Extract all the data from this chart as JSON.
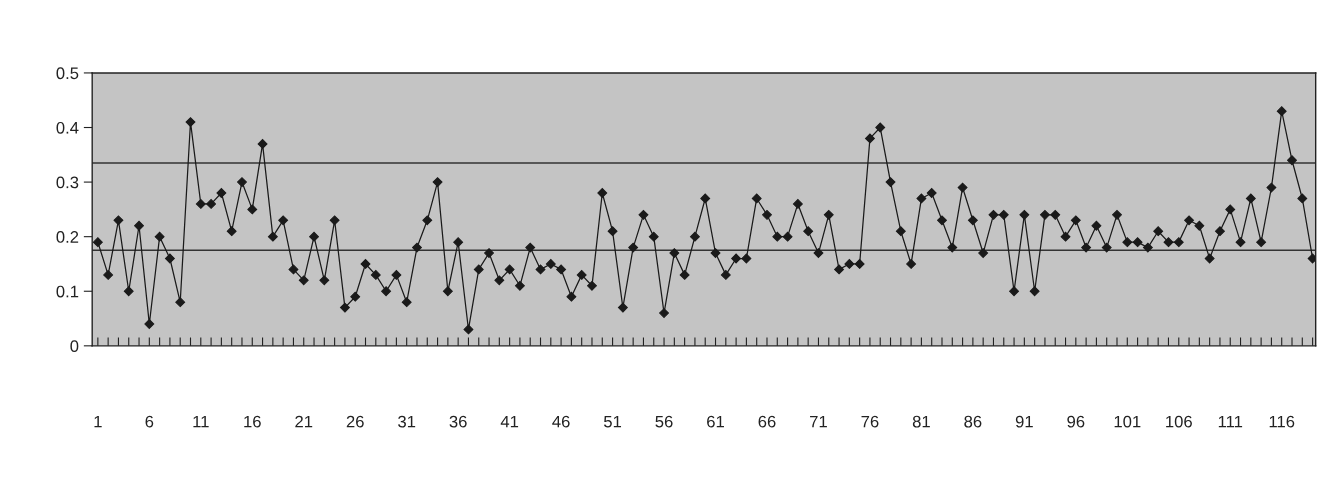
{
  "chart_data": {
    "type": "line",
    "categories": [
      "1",
      null,
      null,
      null,
      null,
      "6",
      null,
      null,
      null,
      null,
      "11",
      null,
      null,
      null,
      null,
      "16",
      null,
      null,
      null,
      null,
      "21",
      null,
      null,
      null,
      null,
      "26",
      null,
      null,
      null,
      null,
      "31",
      null,
      null,
      null,
      null,
      "36",
      null,
      null,
      null,
      null,
      "41",
      null,
      null,
      null,
      null,
      "46",
      null,
      null,
      null,
      null,
      "51",
      null,
      null,
      null,
      null,
      "56",
      null,
      null,
      null,
      null,
      "61",
      null,
      null,
      null,
      null,
      "66",
      null,
      null,
      null,
      null,
      "71",
      null,
      null,
      null,
      null,
      "76",
      null,
      null,
      null,
      null,
      "81",
      null,
      null,
      null,
      null,
      "86",
      null,
      null,
      null,
      null,
      "91",
      null,
      null,
      null,
      null,
      "96",
      null,
      null,
      null,
      null,
      "101",
      null,
      null,
      null,
      null,
      "106",
      null,
      null,
      null,
      null,
      "111",
      null,
      null,
      null,
      null,
      "116",
      null,
      null,
      null
    ],
    "series": [
      {
        "color": "#1a1a1a",
        "values": [
          0.19,
          0.13,
          0.23,
          0.1,
          0.22,
          0.04,
          0.2,
          0.16,
          0.08,
          0.41,
          0.26,
          0.26,
          0.28,
          0.21,
          0.3,
          0.25,
          0.37,
          0.2,
          0.23,
          0.14,
          0.12,
          0.2,
          0.12,
          0.23,
          0.07,
          0.09,
          0.15,
          0.13,
          0.1,
          0.13,
          0.08,
          0.18,
          0.23,
          0.3,
          0.1,
          0.19,
          0.03,
          0.14,
          0.17,
          0.12,
          0.14,
          0.11,
          0.18,
          0.14,
          0.15,
          0.14,
          0.09,
          0.13,
          0.11,
          0.28,
          0.21,
          0.07,
          0.18,
          0.24,
          0.2,
          0.06,
          0.17,
          0.13,
          0.2,
          0.27,
          0.17,
          0.13,
          0.16,
          0.16,
          0.27,
          0.24,
          0.2,
          0.2,
          0.26,
          0.21,
          0.17,
          0.24,
          0.14,
          0.15,
          0.15,
          0.38,
          0.4,
          0.3,
          0.21,
          0.15,
          0.27,
          0.28,
          0.23,
          0.18,
          0.29,
          0.23,
          0.17,
          0.24,
          0.24,
          0.1,
          0.24,
          0.1,
          0.24,
          0.24,
          0.2,
          0.23,
          0.18,
          0.22,
          0.18,
          0.24,
          0.19,
          0.19,
          0.18,
          0.21,
          0.19,
          0.19,
          0.23,
          0.22,
          0.16,
          0.21,
          0.25,
          0.19,
          0.27,
          0.19,
          0.29,
          0.43,
          0.34,
          0.27,
          0.16
        ]
      }
    ],
    "ylim": [
      0,
      0.5
    ],
    "yticks": [
      0,
      0.1,
      0.2,
      0.3,
      0.4,
      0.5
    ],
    "ref_lines": [
      {
        "axis": "y",
        "value": 0.335,
        "color": "#333333"
      },
      {
        "axis": "y",
        "value": 0.175,
        "color": "#333333"
      }
    ],
    "marker": "diamond",
    "line_style": "solid",
    "grid": false,
    "legend": false
  }
}
